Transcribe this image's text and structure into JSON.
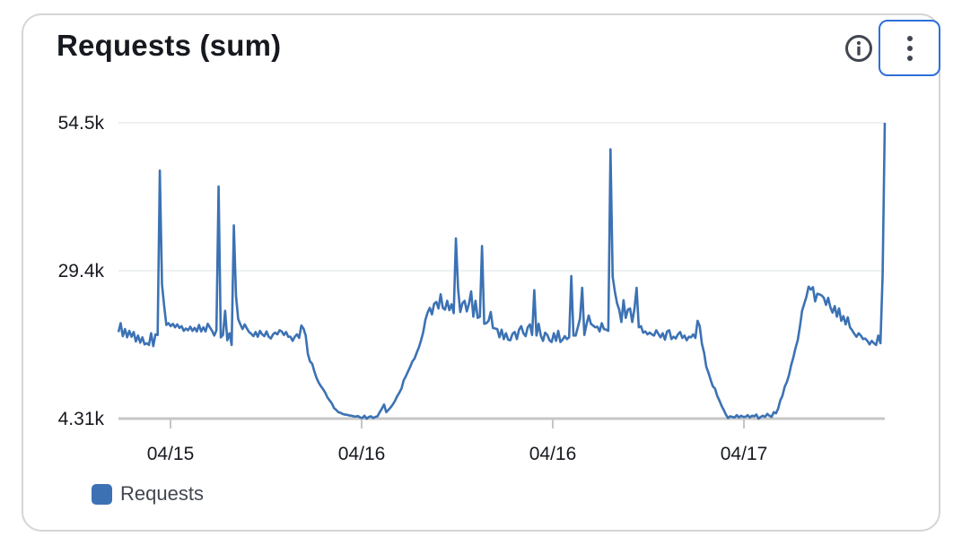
{
  "widget": {
    "title": "Requests (sum)",
    "info_icon": "info-circle-icon",
    "menu_icon": "vertical-ellipsis-icon"
  },
  "chart_data": {
    "type": "line",
    "title": "Requests (sum)",
    "y_ticks": [
      "54.5k",
      "29.4k",
      "4.31k"
    ],
    "y_tick_values": [
      54500,
      29400,
      4310
    ],
    "ylim": [
      4310,
      54500
    ],
    "x_ticks": [
      "04/15",
      "04/16",
      "04/16",
      "04/17"
    ],
    "grid": true,
    "legend_position": "bottom-left",
    "series": [
      {
        "name": "Requests",
        "color": "#3c72b4",
        "values": [
          19000,
          20500,
          18300,
          19500,
          18100,
          19200,
          18200,
          19000,
          17400,
          18400,
          17200,
          18100,
          16900,
          17100,
          16800,
          18800,
          16600,
          18600,
          18500,
          46400,
          27100,
          23400,
          20200,
          20500,
          20000,
          20400,
          19800,
          20300,
          19700,
          20000,
          19200,
          19600,
          19300,
          19900,
          19200,
          19700,
          19100,
          20200,
          19100,
          19800,
          19100,
          20400,
          19800,
          19200,
          18400,
          19300,
          43700,
          18100,
          18500,
          22600,
          17600,
          18800,
          16800,
          37100,
          25100,
          21200,
          20300,
          19500,
          20300,
          19600,
          19000,
          18700,
          18300,
          19000,
          18200,
          19200,
          18600,
          18300,
          19100,
          18200,
          17900,
          18600,
          18900,
          18600,
          19300,
          19100,
          18500,
          19000,
          18200,
          18200,
          17500,
          18200,
          18600,
          18000,
          20100,
          19600,
          18400,
          15300,
          14000,
          13600,
          12300,
          11200,
          10400,
          9800,
          9300,
          8700,
          7900,
          7400,
          6900,
          6100,
          5800,
          5400,
          5300,
          5100,
          5000,
          4950,
          4850,
          4800,
          4700,
          4650,
          4750,
          4500,
          4400,
          4800,
          4300,
          4600,
          4700,
          4400,
          4600,
          4700,
          5400,
          6000,
          6700,
          5400,
          5800,
          6200,
          6700,
          7300,
          8100,
          8700,
          9400,
          10800,
          11500,
          12300,
          13100,
          14000,
          14500,
          15500,
          16400,
          17600,
          19000,
          21100,
          22300,
          23100,
          22000,
          23800,
          24100,
          23000,
          25400,
          23100,
          22800,
          24300,
          22700,
          23700,
          22200,
          34900,
          26300,
          22400,
          23900,
          24300,
          22500,
          23800,
          25900,
          21600,
          24300,
          21400,
          21600,
          33600,
          20400,
          20500,
          20900,
          22400,
          19700,
          19600,
          19500,
          18100,
          19400,
          17800,
          18800,
          17700,
          17600,
          18700,
          19000,
          17800,
          19400,
          20000,
          18800,
          18300,
          19800,
          20300,
          18500,
          26100,
          18400,
          20400,
          18400,
          17500,
          18900,
          18500,
          17600,
          17300,
          18800,
          17500,
          19200,
          17300,
          17700,
          18300,
          17800,
          18100,
          28500,
          18400,
          18400,
          19800,
          21300,
          26500,
          18500,
          20300,
          21800,
          20400,
          20100,
          19800,
          19900,
          19100,
          20500,
          19500,
          19400,
          19200,
          50000,
          28400,
          25900,
          23900,
          22800,
          20700,
          24400,
          21400,
          22800,
          23000,
          20700,
          22900,
          26500,
          19800,
          20000,
          18900,
          19100,
          18600,
          18900,
          18600,
          18400,
          19300,
          18700,
          18100,
          18800,
          17700,
          19100,
          19300,
          17800,
          18200,
          17900,
          18600,
          19000,
          18000,
          18400,
          17600,
          18200,
          18100,
          18600,
          18000,
          20900,
          20000,
          17000,
          15500,
          13100,
          12100,
          10900,
          9800,
          9400,
          8200,
          7400,
          6500,
          5800,
          5000,
          4400,
          4700,
          4600,
          4500,
          4900,
          4500,
          4800,
          4600,
          4600,
          4900,
          4500,
          4800,
          4700,
          5000,
          4300,
          4600,
          4800,
          4600,
          5100,
          4800,
          4600,
          5400,
          5200,
          6000,
          7400,
          8200,
          9700,
          10500,
          11700,
          13400,
          14700,
          16300,
          17600,
          19900,
          22600,
          23800,
          25000,
          26700,
          26200,
          26600,
          24200,
          25500,
          25400,
          25200,
          24800,
          23600,
          24800,
          23200,
          22300,
          23400,
          21600,
          23000,
          20900,
          21700,
          20300,
          21500,
          19800,
          19300,
          18700,
          18200,
          18800,
          18400,
          17800,
          17900,
          17500,
          16900,
          17500,
          17100,
          16800,
          18400,
          17100,
          28600,
          54500
        ]
      }
    ]
  },
  "legend": {
    "items": [
      {
        "label": "Requests",
        "color": "#3c72b4"
      }
    ]
  }
}
